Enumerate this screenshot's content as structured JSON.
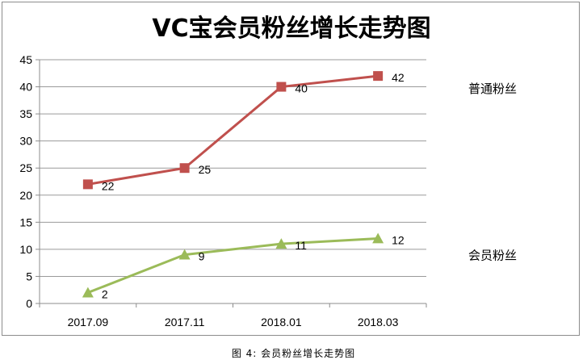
{
  "chart_data": {
    "type": "line",
    "title": "VC宝会员粉丝增长走势图",
    "categories": [
      "2017.09",
      "2017.11",
      "2018.01",
      "2018.03"
    ],
    "ylim": [
      0,
      45
    ],
    "yticks": [
      0,
      5,
      10,
      15,
      20,
      25,
      30,
      35,
      40,
      45
    ],
    "grid": true,
    "legend_position": "right",
    "series": [
      {
        "name": "普通粉丝",
        "values": [
          22,
          25,
          40,
          42
        ],
        "color": "#c0504d",
        "marker": "square"
      },
      {
        "name": "会员粉丝",
        "values": [
          2,
          9,
          11,
          12
        ],
        "color": "#9bbb59",
        "marker": "triangle"
      }
    ]
  },
  "caption": "图 4: 会员粉丝增长走势图"
}
